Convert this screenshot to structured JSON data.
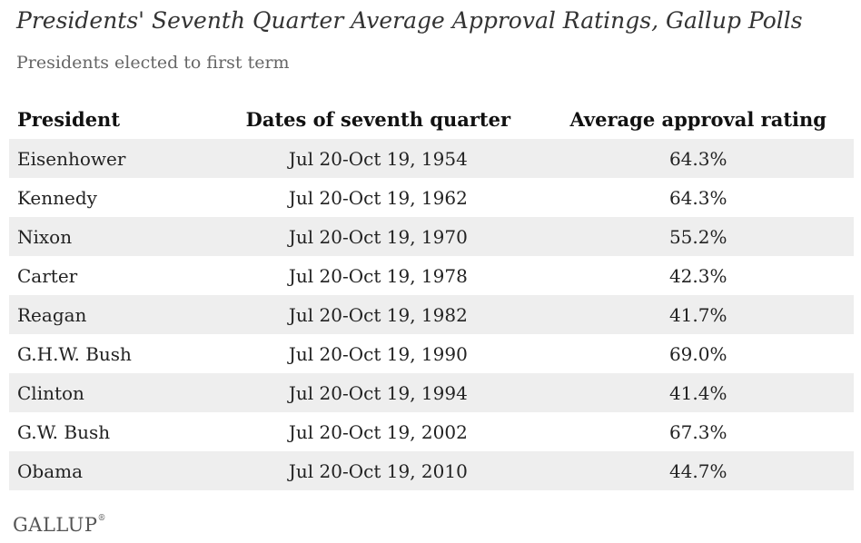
{
  "chart_data": {
    "type": "table",
    "title": "Presidents' Seventh Quarter Average Approval Ratings, Gallup Polls",
    "subtitle": "Presidents elected to first term",
    "columns": [
      "President",
      "Dates of seventh quarter",
      "Average approval rating"
    ],
    "rows": [
      {
        "president": "Eisenhower",
        "dates": "Jul 20-Oct 19, 1954",
        "rating": "64.3%"
      },
      {
        "president": "Kennedy",
        "dates": "Jul 20-Oct 19, 1962",
        "rating": "64.3%"
      },
      {
        "president": "Nixon",
        "dates": "Jul 20-Oct 19, 1970",
        "rating": "55.2%"
      },
      {
        "president": "Carter",
        "dates": "Jul 20-Oct 19, 1978",
        "rating": "42.3%"
      },
      {
        "president": "Reagan",
        "dates": "Jul 20-Oct 19, 1982",
        "rating": "41.7%"
      },
      {
        "president": "G.H.W. Bush",
        "dates": "Jul 20-Oct 19, 1990",
        "rating": "69.0%"
      },
      {
        "president": "Clinton",
        "dates": "Jul 20-Oct 19, 1994",
        "rating": "41.4%"
      },
      {
        "president": "G.W. Bush",
        "dates": "Jul 20-Oct 19, 2002",
        "rating": "67.3%"
      },
      {
        "president": "Obama",
        "dates": "Jul 20-Oct 19, 2010",
        "rating": "44.7%"
      }
    ],
    "source": "GALLUP",
    "row_stripe_color": "#eeeeee"
  }
}
